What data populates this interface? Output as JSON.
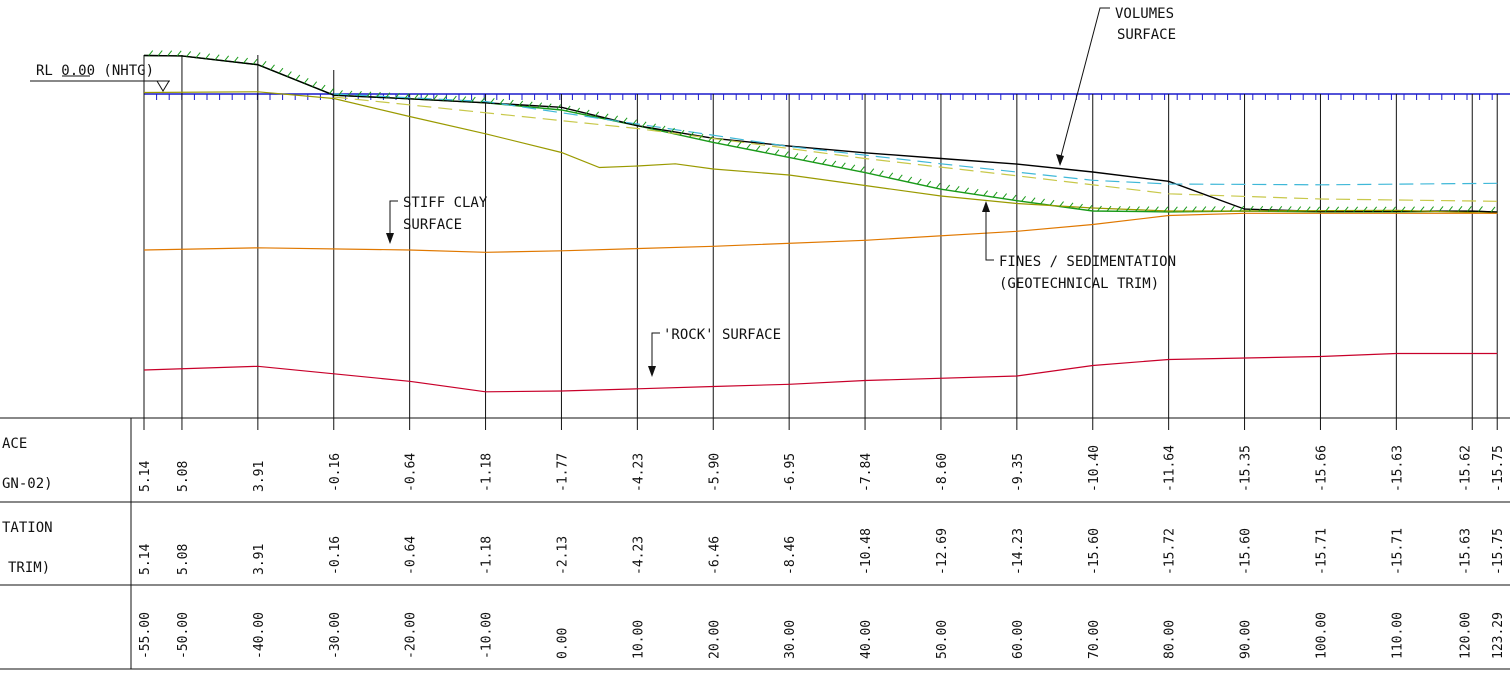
{
  "labels": {
    "rl_datum": "RL 0.00 (NHTG)",
    "volumes_surface": [
      "VOLUMES",
      "SURFACE"
    ],
    "stiff_clay_surface": [
      "STIFF CLAY",
      "SURFACE"
    ],
    "fines_sedimentation": [
      "FINES / SEDIMENTATION",
      "(GEOTECHNICAL TRIM)"
    ],
    "rock_surface": "'ROCK' SURFACE"
  },
  "table": {
    "row1_label": [
      "ACE",
      "GN-02)"
    ],
    "row2_label": [
      "TATION",
      "TRIM)"
    ],
    "row3_label": ""
  },
  "chart_data": {
    "type": "line",
    "title": "",
    "xlabel": "",
    "ylabel": "",
    "chainages": [
      -55,
      -50,
      -40,
      -30,
      -20,
      -10,
      0,
      10,
      20,
      30,
      40,
      50,
      60,
      70,
      80,
      90,
      100,
      110,
      120,
      123.29
    ],
    "row_surface": [
      "5.14",
      "5.08",
      "3.91",
      "-0.16",
      "-0.64",
      "-1.18",
      "-1.77",
      "-4.23",
      "-5.90",
      "-6.95",
      "-7.84",
      "-8.60",
      "-9.35",
      "-10.40",
      "-11.64",
      "-15.35",
      "-15.66",
      "-15.63",
      "-15.62",
      "-15.75"
    ],
    "row_sedimentation": [
      "5.14",
      "5.08",
      "3.91",
      "-0.16",
      "-0.64",
      "-1.18",
      "-2.13",
      "-4.23",
      "-6.46",
      "-8.46",
      "-10.48",
      "-12.69",
      "-14.23",
      "-15.60",
      "-15.72",
      "-15.60",
      "-15.71",
      "-15.71",
      "-15.63",
      "-15.75"
    ],
    "row_chainage": [
      "-55.00",
      "-50.00",
      "-40.00",
      "-30.00",
      "-20.00",
      "-10.00",
      "0.00",
      "10.00",
      "20.00",
      "30.00",
      "40.00",
      "50.00",
      "60.00",
      "70.00",
      "80.00",
      "90.00",
      "100.00",
      "110.00",
      "120.00",
      "123.29"
    ],
    "series": [
      {
        "key": "sed",
        "color": "#1a9a1a",
        "points": [
          [
            -55,
            5.14
          ],
          [
            -50,
            5.08
          ],
          [
            -40,
            3.91
          ],
          [
            -30,
            -0.16
          ],
          [
            -20,
            -0.64
          ],
          [
            -10,
            -1.18
          ],
          [
            0,
            -2.13
          ],
          [
            10,
            -4.23
          ],
          [
            20,
            -6.46
          ],
          [
            30,
            -8.46
          ],
          [
            40,
            -10.48
          ],
          [
            50,
            -12.69
          ],
          [
            60,
            -14.23
          ],
          [
            70,
            -15.6
          ],
          [
            80,
            -15.72
          ],
          [
            90,
            -15.6
          ],
          [
            100,
            -15.71
          ],
          [
            110,
            -15.71
          ],
          [
            120,
            -15.63
          ],
          [
            123.29,
            -15.75
          ]
        ]
      },
      {
        "key": "vol",
        "color": "#000000",
        "points": [
          [
            -55,
            5.14
          ],
          [
            -50,
            5.08
          ],
          [
            -40,
            3.91
          ],
          [
            -30,
            -0.16
          ],
          [
            -20,
            -0.64
          ],
          [
            -10,
            -1.18
          ],
          [
            0,
            -1.77
          ],
          [
            10,
            -4.23
          ],
          [
            20,
            -5.9
          ],
          [
            30,
            -6.95
          ],
          [
            40,
            -7.84
          ],
          [
            50,
            -8.6
          ],
          [
            60,
            -9.35
          ],
          [
            70,
            -10.4
          ],
          [
            80,
            -11.64
          ],
          [
            90,
            -15.35
          ],
          [
            100,
            -15.66
          ],
          [
            110,
            -15.63
          ],
          [
            120,
            -15.62
          ],
          [
            123.29,
            -15.75
          ]
        ]
      },
      {
        "key": "dash_cyan",
        "color": "#3fb8d8",
        "dash": true,
        "points": [
          [
            -30,
            0
          ],
          [
            -10,
            -1.0
          ],
          [
            10,
            -4.0
          ],
          [
            30,
            -7.0
          ],
          [
            50,
            -9.3
          ],
          [
            70,
            -11.5
          ],
          [
            80,
            -12.0
          ],
          [
            100,
            -12.1
          ],
          [
            123.29,
            -11.9
          ]
        ]
      },
      {
        "key": "dash_yellow",
        "color": "#c8c84a",
        "dash": true,
        "points": [
          [
            -30,
            -0.4
          ],
          [
            10,
            -4.6
          ],
          [
            40,
            -8.6
          ],
          [
            60,
            -10.9
          ],
          [
            80,
            -13.3
          ],
          [
            100,
            -14.0
          ],
          [
            123.29,
            -14.3
          ]
        ]
      },
      {
        "key": "olive",
        "color": "#9a9a00",
        "points": [
          [
            -55,
            0.2
          ],
          [
            -40,
            0.3
          ],
          [
            -30,
            -0.6
          ],
          [
            -20,
            -3.0
          ],
          [
            -10,
            -5.3
          ],
          [
            0,
            -7.8
          ],
          [
            5,
            -9.8
          ],
          [
            10,
            -9.6
          ],
          [
            15,
            -9.3
          ],
          [
            20,
            -10.0
          ],
          [
            30,
            -10.8
          ],
          [
            40,
            -12.2
          ],
          [
            50,
            -13.6
          ],
          [
            60,
            -14.6
          ],
          [
            70,
            -15.2
          ],
          [
            80,
            -15.6
          ],
          [
            90,
            -15.6
          ],
          [
            110,
            -15.5
          ],
          [
            123.29,
            -15.9
          ]
        ]
      },
      {
        "key": "clay",
        "color": "#e07800",
        "points": [
          [
            -55,
            -20.8
          ],
          [
            -40,
            -20.5
          ],
          [
            -20,
            -20.8
          ],
          [
            -10,
            -21.1
          ],
          [
            0,
            -20.9
          ],
          [
            20,
            -20.3
          ],
          [
            40,
            -19.5
          ],
          [
            60,
            -18.3
          ],
          [
            70,
            -17.4
          ],
          [
            80,
            -16.2
          ],
          [
            90,
            -15.9
          ],
          [
            123.29,
            -15.9
          ]
        ]
      },
      {
        "key": "rock",
        "color": "#c8002a",
        "points": [
          [
            -55,
            -36.8
          ],
          [
            -40,
            -36.3
          ],
          [
            -20,
            -38.3
          ],
          [
            -10,
            -39.7
          ],
          [
            0,
            -39.6
          ],
          [
            10,
            -39.3
          ],
          [
            20,
            -39.0
          ],
          [
            30,
            -38.7
          ],
          [
            40,
            -38.2
          ],
          [
            60,
            -37.6
          ],
          [
            70,
            -36.2
          ],
          [
            80,
            -35.4
          ],
          [
            100,
            -35.0
          ],
          [
            110,
            -34.6
          ],
          [
            123.29,
            -34.6
          ]
        ]
      }
    ]
  }
}
